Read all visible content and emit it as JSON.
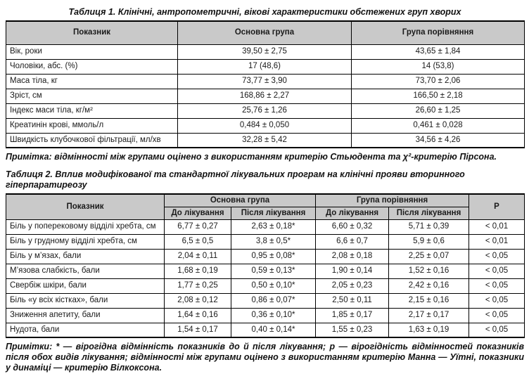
{
  "colors": {
    "header_bg": "#c9c9c9",
    "border": "#000000",
    "text": "#1a1a1a",
    "page_bg": "#ffffff"
  },
  "table1": {
    "title": "Таблиця 1. Клінічні, антропометричні, вікові характеристики обстежених груп хворих",
    "headers": {
      "indicator": "Показник",
      "main_group": "Основна група",
      "comparison_group": "Група порівняння"
    },
    "rows": [
      [
        "Вік, роки",
        "39,50 ± 2,75",
        "43,65 ± 1,84"
      ],
      [
        "Чоловіки, абс. (%)",
        "17 (48,6)",
        "14 (53,8)"
      ],
      [
        "Маса тіла, кг",
        "73,77 ± 3,90",
        "73,70 ± 2,06"
      ],
      [
        "Зріст, см",
        "168,86 ± 2,27",
        "166,50 ± 2,18"
      ],
      [
        "Індекс маси тіла, кг/м²",
        "25,76 ± 1,26",
        "26,60 ± 1,25"
      ],
      [
        "Креатинін крові, ммоль/л",
        "0,484 ± 0,050",
        "0,461 ± 0,028"
      ],
      [
        "Швидкість клубочкової фільтрації, мл/хв",
        "32,28 ± 5,42",
        "34,56 ± 4,26"
      ]
    ],
    "note": "Примітка: відмінності між групами оцінено з використанням критерію Стьюдента та χ²-критерію Пірсона."
  },
  "table2": {
    "title": "Таблиця 2. Вплив модифікованої та стандартної лікувальних програм на клінічні прояви вторинного гіперпаратиреозу",
    "headers": {
      "indicator": "Показник",
      "main_group": "Основна група",
      "comparison_group": "Група порівняння",
      "before": "До лікування",
      "after": "Після лікування",
      "p": "Р"
    },
    "rows": [
      [
        "Біль у поперековому відділі хребта, см",
        "6,77 ± 0,27",
        "2,63 ± 0,18*",
        "6,60 ± 0,32",
        "5,71 ± 0,39",
        "< 0,01"
      ],
      [
        "Біль у грудному відділі хребта, см",
        "6,5 ± 0,5",
        "3,8 ± 0,5*",
        "6,6 ± 0,7",
        "5,9 ± 0,6",
        "< 0,01"
      ],
      [
        "Біль у м’язах, бали",
        "2,04 ± 0,11",
        "0,95 ± 0,08*",
        "2,08 ± 0,18",
        "2,25 ± 0,07",
        "< 0,05"
      ],
      [
        "М’язова слабкість, бали",
        "1,68 ± 0,19",
        "0,59 ± 0,13*",
        "1,90 ± 0,14",
        "1,52 ± 0,16",
        "< 0,05"
      ],
      [
        "Свербіж шкіри, бали",
        "1,77 ± 0,25",
        "0,50 ± 0,10*",
        "2,05 ± 0,23",
        "2,42 ± 0,16",
        "< 0,05"
      ],
      [
        "Біль «у всіх кістках», бали",
        "2,08 ± 0,12",
        "0,86 ± 0,07*",
        "2,50 ± 0,11",
        "2,15 ± 0,16",
        "< 0,05"
      ],
      [
        "Зниження апетиту, бали",
        "1,64 ± 0,16",
        "0,36 ± 0,10*",
        "1,85 ± 0,17",
        "2,17 ± 0,17",
        "< 0,05"
      ],
      [
        "Нудота, бали",
        "1,54 ± 0,17",
        "0,40 ± 0,14*",
        "1,55 ± 0,23",
        "1,63 ± 0,19",
        "< 0,05"
      ]
    ],
    "note": "Примітки: * — вірогідна відмінність показників до й після лікування; р — вірогідність відмінностей показників після обох видів лікування; відмінності між групами оцінено з використанням критерію Манна — Уїтні, показники у динаміці — критерію Вілкоксона."
  }
}
